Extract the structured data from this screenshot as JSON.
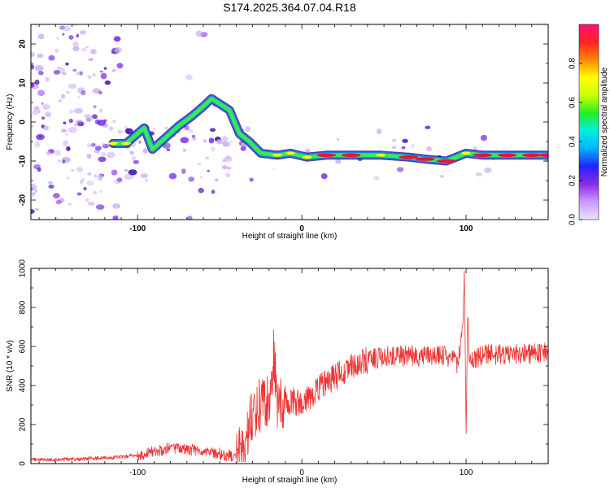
{
  "figure_title": "S174.2025.364.07.04.R18",
  "colors": {
    "snr_line": "#ee3333",
    "ridge": "#35ea55",
    "ridge_edge": "#1c7fe0",
    "ridge_peak": "#e8123c",
    "spectral_faint": "#cfb0f4",
    "spectral_mid": "#7a2ce6",
    "spectral_dark": "#3a12a8"
  },
  "chart_data": [
    {
      "type": "heatmap",
      "title": "",
      "xlabel": "Height of straight line (km)",
      "ylabel": "Frequency (Hz)",
      "xlim": [
        -165,
        150
      ],
      "ylim": [
        -25,
        25
      ],
      "x_ticks": [
        -100,
        0,
        100
      ],
      "y_ticks": [
        -20,
        -10,
        0,
        10,
        20
      ],
      "x_tick_labels": [
        "-100",
        "0",
        "100"
      ],
      "y_tick_labels": [
        "-20",
        "-10",
        "0",
        "10",
        "20"
      ],
      "colorbar": {
        "label": "Normalized spectral amplitude",
        "range": [
          0,
          1
        ],
        "ticks": [
          0.0,
          0.2,
          0.4,
          0.6,
          0.8
        ],
        "tick_labels": [
          "0.0",
          "0.2",
          "0.4",
          "0.6",
          "0.8"
        ],
        "gradient": [
          "#e8e4f6",
          "#cc99ff",
          "#8a2be2",
          "#2222ff",
          "#00b4ff",
          "#00f0e0",
          "#22ee22",
          "#ccff00",
          "#ffff00",
          "#ff8800",
          "#ff2222",
          "#ff1177"
        ]
      },
      "ridge": [
        {
          "x": -115,
          "y": -5.5,
          "a": 0.5
        },
        {
          "x": -107,
          "y": -5.5,
          "a": 0.55
        },
        {
          "x": -96,
          "y": -1.5,
          "a": 0.4
        },
        {
          "x": -91,
          "y": -7,
          "a": 0.35
        },
        {
          "x": -83,
          "y": -4,
          "a": 0.4
        },
        {
          "x": -75,
          "y": -1,
          "a": 0.4
        },
        {
          "x": -67,
          "y": 1.5,
          "a": 0.4
        },
        {
          "x": -60,
          "y": 4,
          "a": 0.4
        },
        {
          "x": -55,
          "y": 6,
          "a": 0.35
        },
        {
          "x": -44,
          "y": 3,
          "a": 0.4
        },
        {
          "x": -38,
          "y": -3,
          "a": 0.4
        },
        {
          "x": -32,
          "y": -5,
          "a": 0.35
        },
        {
          "x": -25,
          "y": -8,
          "a": 0.45
        },
        {
          "x": -15,
          "y": -8.5,
          "a": 0.5
        },
        {
          "x": -7,
          "y": -8,
          "a": 0.6
        },
        {
          "x": 3,
          "y": -9,
          "a": 0.55
        },
        {
          "x": 15,
          "y": -8.5,
          "a": 0.7
        },
        {
          "x": 30,
          "y": -8.5,
          "a": 0.75
        },
        {
          "x": 48,
          "y": -8.5,
          "a": 0.65
        },
        {
          "x": 65,
          "y": -9,
          "a": 0.7
        },
        {
          "x": 75,
          "y": -9.5,
          "a": 0.8
        },
        {
          "x": 88,
          "y": -10,
          "a": 0.75
        },
        {
          "x": 100,
          "y": -8,
          "a": 0.55
        },
        {
          "x": 110,
          "y": -8.5,
          "a": 0.9
        },
        {
          "x": 125,
          "y": -8.5,
          "a": 0.95
        },
        {
          "x": 140,
          "y": -8.5,
          "a": 0.9
        },
        {
          "x": 150,
          "y": -8.5,
          "a": 0.85
        }
      ]
    },
    {
      "type": "line",
      "title": "",
      "xlabel": "Height of straight line (km)",
      "ylabel": "SNR (10 * v/v)",
      "xlim": [
        -165,
        150
      ],
      "ylim": [
        0,
        1000
      ],
      "x_ticks": [
        -100,
        0,
        100
      ],
      "y_ticks": [
        0,
        200,
        400,
        600,
        800,
        1000
      ],
      "x_tick_labels": [
        "-100",
        "0",
        "100"
      ],
      "y_tick_labels": [
        "0",
        "200",
        "400",
        "600",
        "800",
        "1000"
      ],
      "series": [
        {
          "x": [
            -165,
            -150,
            -130,
            -110,
            -100,
            -90,
            -80,
            -70,
            -60,
            -50,
            -40,
            -35,
            -33,
            -30,
            -25,
            -20,
            -17,
            -15,
            -12,
            -10,
            -5,
            0,
            5,
            10,
            15,
            20,
            25,
            30,
            35,
            40,
            45,
            50,
            60,
            70,
            80,
            90,
            95,
            98,
            99,
            100,
            101,
            102,
            105,
            110,
            120,
            130,
            140,
            150
          ],
          "values": [
            20,
            20,
            25,
            35,
            45,
            60,
            80,
            75,
            60,
            50,
            30,
            80,
            180,
            260,
            300,
            320,
            560,
            280,
            320,
            300,
            320,
            310,
            340,
            380,
            420,
            440,
            470,
            500,
            515,
            530,
            540,
            545,
            550,
            555,
            555,
            545,
            500,
            700,
            1000,
            150,
            800,
            520,
            540,
            555,
            560,
            560,
            565,
            565
          ]
        }
      ]
    }
  ]
}
